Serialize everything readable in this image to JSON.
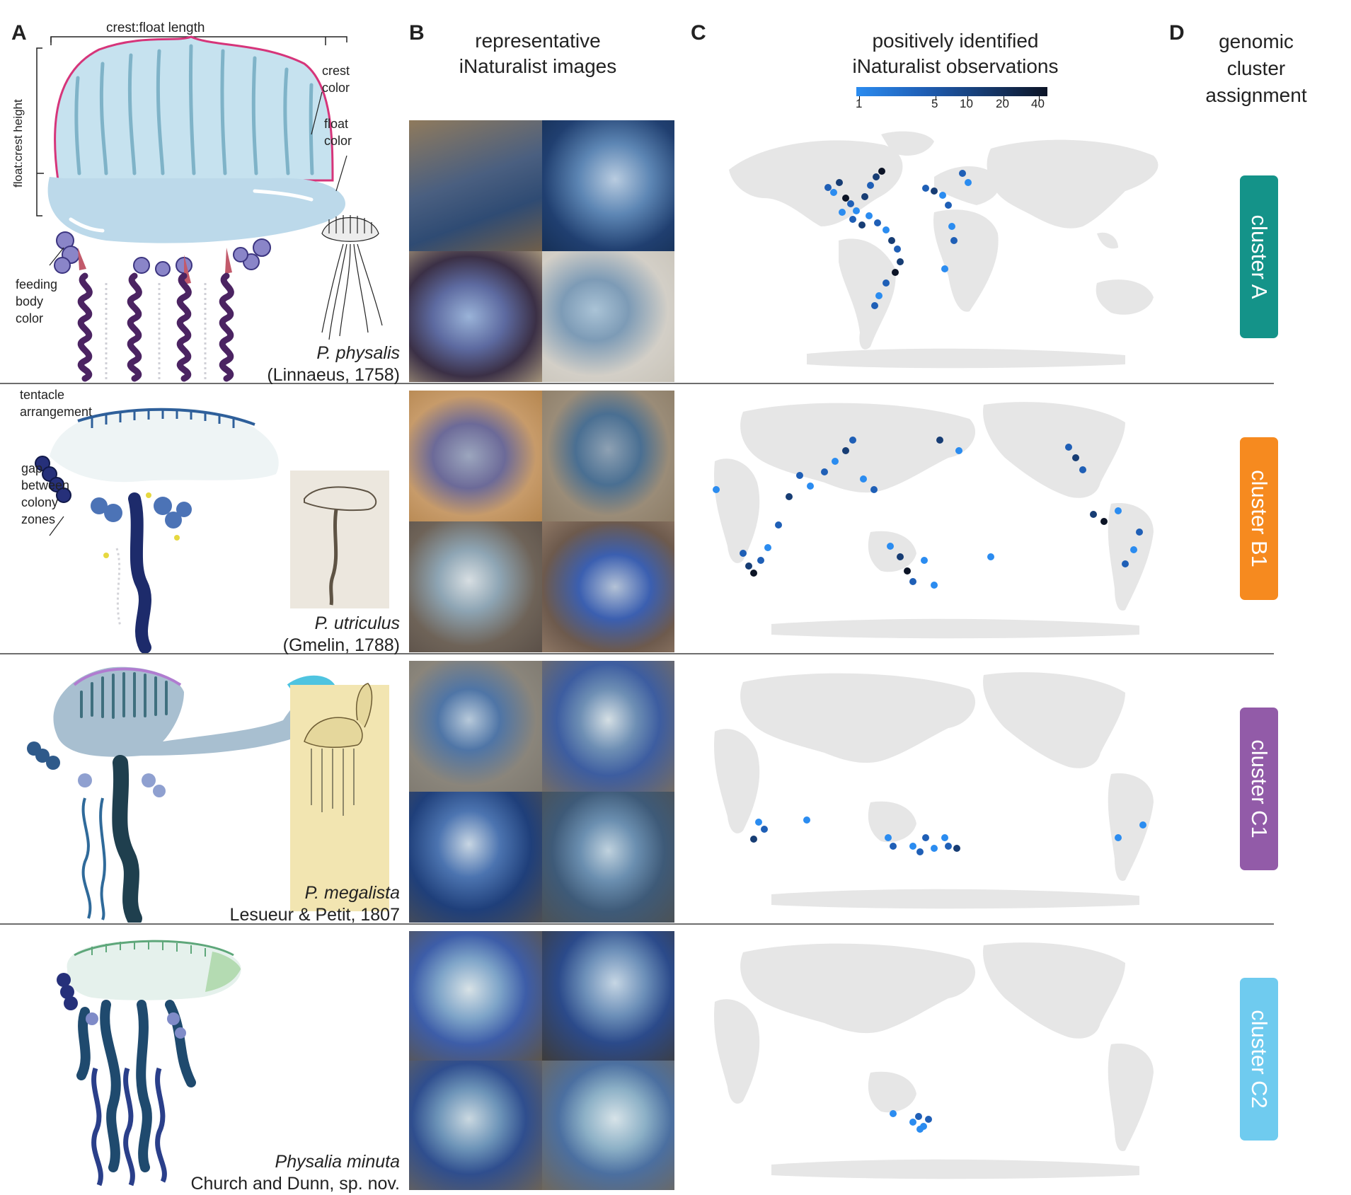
{
  "panels": {
    "a": "A",
    "b": "B",
    "c": "C",
    "d": "D"
  },
  "headers": {
    "b_line1": "representative",
    "b_line2": "iNaturalist images",
    "c_line1": "positively identified",
    "c_line2": "iNaturalist observations",
    "d_line1": "genomic",
    "d_line2": "cluster",
    "d_line3": "assignment"
  },
  "colorbar": {
    "ticks": [
      "1",
      "5",
      "10",
      "20",
      "40"
    ],
    "colors": [
      "#2b8cf0",
      "#1f5fb6",
      "#173d74",
      "#0c1426"
    ]
  },
  "annotations": {
    "crest_float_length": "crest:float length",
    "float_crest_height": "float:crest height",
    "crest_color_1": "crest",
    "crest_color_2": "color",
    "float_color_1": "float",
    "float_color_2": "color",
    "feeding_1": "feeding",
    "feeding_2": "body",
    "feeding_3": "color",
    "tentacle_1": "tentacle",
    "tentacle_2": "arrangement",
    "gap_1": "gap",
    "gap_2": "between",
    "gap_3": "colony",
    "gap_4": "zones"
  },
  "species": [
    {
      "name": "P. physalis",
      "authority": "(Linnaeus, 1758)",
      "cluster": "cluster A",
      "cluster_color": "#149389"
    },
    {
      "name": "P. utriculus",
      "authority": "(Gmelin, 1788)",
      "cluster": "cluster B1",
      "cluster_color": "#f68a1f"
    },
    {
      "name": "P. megalista",
      "authority": "Lesueur & Petit, 1807",
      "cluster": "cluster C1",
      "cluster_color": "#925ba8"
    },
    {
      "name": "Physalia minuta",
      "authority": "Church and Dunn, sp. nov.",
      "cluster": "cluster C2",
      "cluster_color": "#6fcbef"
    }
  ]
}
